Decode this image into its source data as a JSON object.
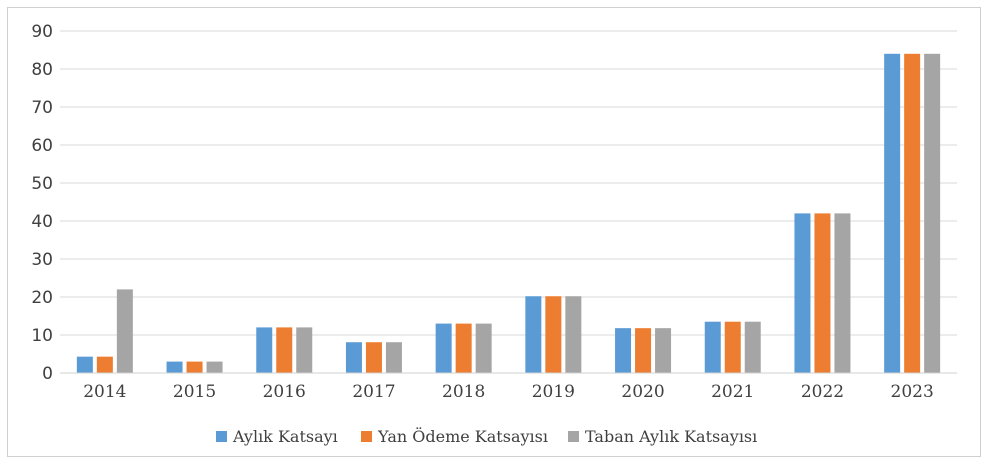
{
  "chart_data": {
    "type": "bar",
    "categories": [
      "2014",
      "2015",
      "2016",
      "2017",
      "2018",
      "2019",
      "2020",
      "2021",
      "2022",
      "2023"
    ],
    "series": [
      {
        "name": "Aylık Katsayı",
        "color": "#5b9bd5",
        "values": [
          4.3,
          3.0,
          12.0,
          8.1,
          13.0,
          20.2,
          11.8,
          13.5,
          42.0,
          84.0
        ]
      },
      {
        "name": "Yan Ödeme Katsayısı",
        "color": "#ed7d31",
        "values": [
          4.3,
          3.0,
          12.0,
          8.1,
          13.0,
          20.2,
          11.8,
          13.5,
          42.0,
          84.0
        ]
      },
      {
        "name": "Taban Aylık Katsayısı",
        "color": "#a5a5a5",
        "values": [
          22.0,
          3.0,
          12.0,
          8.1,
          13.0,
          20.2,
          11.8,
          13.5,
          42.0,
          84.0
        ]
      }
    ],
    "yticks": [
      "0",
      "10",
      "20",
      "30",
      "40",
      "50",
      "60",
      "70",
      "80",
      "90"
    ],
    "ylim": [
      0,
      90
    ],
    "grid": true,
    "legend": "bottom"
  }
}
